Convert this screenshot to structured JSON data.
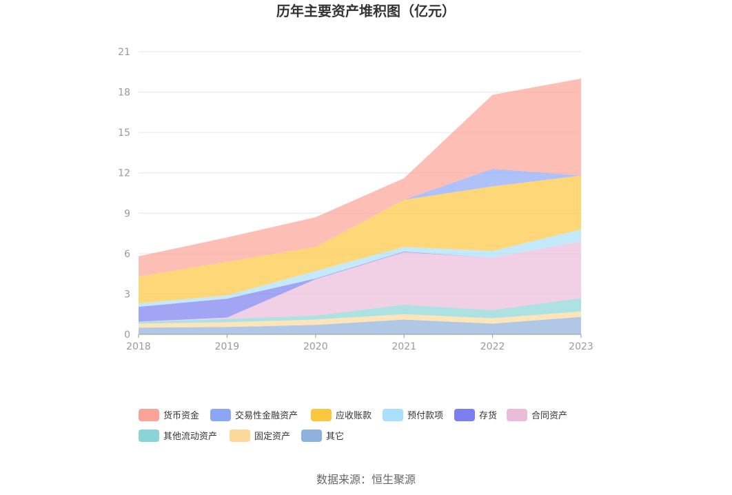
{
  "chart_data": {
    "type": "area",
    "stacked": true,
    "title": "历年主要资产堆积图（亿元）",
    "xlabel": "",
    "ylabel": "",
    "categories": [
      "2018",
      "2019",
      "2020",
      "2021",
      "2022",
      "2023"
    ],
    "ylim": [
      0,
      21
    ],
    "yticks": [
      "0",
      "3",
      "6",
      "9",
      "12",
      "15",
      "18",
      "21"
    ],
    "grid": true,
    "legend_position": "bottom",
    "series": [
      {
        "name": "其它",
        "color": "#8fb0dc",
        "values": [
          0.5,
          0.55,
          0.7,
          1.1,
          0.8,
          1.3
        ]
      },
      {
        "name": "固定资产",
        "color": "#fdd89b",
        "values": [
          0.3,
          0.35,
          0.4,
          0.4,
          0.4,
          0.4
        ]
      },
      {
        "name": "其他流动资产",
        "color": "#8ad4d6",
        "values": [
          0.15,
          0.25,
          0.3,
          0.7,
          0.6,
          1.0
        ]
      },
      {
        "name": "合同资产",
        "color": "#ebbcda",
        "values": [
          0.0,
          0.1,
          2.7,
          3.9,
          3.9,
          4.2
        ]
      },
      {
        "name": "存货",
        "color": "#7b7ff0",
        "values": [
          1.1,
          1.4,
          0.05,
          0.05,
          0.0,
          0.0
        ]
      },
      {
        "name": "预付款项",
        "color": "#a9dffa",
        "values": [
          0.25,
          0.25,
          0.55,
          0.35,
          0.5,
          0.9
        ]
      },
      {
        "name": "应收账款",
        "color": "#fcc63f",
        "values": [
          2.0,
          2.5,
          1.8,
          3.5,
          4.8,
          4.0
        ]
      },
      {
        "name": "交易性金融资产",
        "color": "#8ba6f7",
        "values": [
          0.0,
          0.0,
          0.0,
          0.0,
          1.3,
          0.0
        ]
      },
      {
        "name": "货币资金",
        "color": "#fca397",
        "values": [
          1.5,
          1.8,
          2.2,
          1.6,
          5.5,
          7.2
        ]
      }
    ]
  },
  "legend_order": [
    "货币资金",
    "交易性金融资产",
    "应收账款",
    "预付款项",
    "存货",
    "合同资产",
    "其他流动资产",
    "固定资产",
    "其它"
  ],
  "source": "数据来源：恒生聚源"
}
